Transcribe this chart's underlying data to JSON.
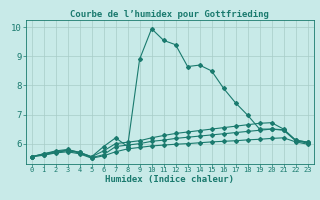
{
  "title": "Courbe de l’humidex pour Gottfrieding",
  "xlabel": "Humidex (Indice chaleur)",
  "bg_color": "#c8eae8",
  "line_color": "#1a7a6e",
  "grid_color": "#a8ccc8",
  "xlim": [
    -0.5,
    23.5
  ],
  "ylim": [
    5.3,
    10.25
  ],
  "xticks": [
    0,
    1,
    2,
    3,
    4,
    5,
    6,
    7,
    8,
    9,
    10,
    11,
    12,
    13,
    14,
    15,
    16,
    17,
    18,
    19,
    20,
    21,
    22,
    23
  ],
  "yticks": [
    6,
    7,
    8,
    9,
    10
  ],
  "line1_x": [
    0,
    1,
    2,
    3,
    4,
    5,
    6,
    7,
    8,
    9,
    10,
    11,
    12,
    13,
    14,
    15,
    16,
    17,
    18,
    19,
    20,
    21,
    22,
    23
  ],
  "line1_y": [
    5.55,
    5.65,
    5.75,
    5.8,
    5.7,
    5.55,
    5.9,
    6.2,
    5.9,
    8.9,
    9.95,
    9.55,
    9.4,
    8.65,
    8.7,
    8.5,
    7.9,
    7.4,
    6.98,
    6.5,
    6.5,
    6.48,
    6.12,
    6.05
  ],
  "line2_x": [
    0,
    1,
    2,
    3,
    4,
    5,
    6,
    7,
    8,
    9,
    10,
    11,
    12,
    13,
    14,
    15,
    16,
    17,
    18,
    19,
    20,
    21,
    22,
    23
  ],
  "line2_y": [
    5.55,
    5.65,
    5.72,
    5.78,
    5.7,
    5.55,
    5.75,
    6.0,
    6.05,
    6.1,
    6.2,
    6.28,
    6.35,
    6.4,
    6.45,
    6.5,
    6.55,
    6.6,
    6.65,
    6.7,
    6.72,
    6.5,
    6.12,
    6.05
  ],
  "line3_x": [
    0,
    1,
    2,
    3,
    4,
    5,
    6,
    7,
    8,
    9,
    10,
    11,
    12,
    13,
    14,
    15,
    16,
    17,
    18,
    19,
    20,
    21,
    22,
    23
  ],
  "line3_y": [
    5.55,
    5.62,
    5.7,
    5.76,
    5.68,
    5.52,
    5.62,
    5.9,
    5.95,
    6.0,
    6.08,
    6.12,
    6.18,
    6.22,
    6.26,
    6.3,
    6.34,
    6.38,
    6.42,
    6.46,
    6.5,
    6.46,
    6.1,
    6.02
  ],
  "line4_x": [
    0,
    1,
    2,
    3,
    4,
    5,
    6,
    7,
    8,
    9,
    10,
    11,
    12,
    13,
    14,
    15,
    16,
    17,
    18,
    19,
    20,
    21,
    22,
    23
  ],
  "line4_y": [
    5.55,
    5.6,
    5.68,
    5.72,
    5.65,
    5.5,
    5.58,
    5.72,
    5.82,
    5.87,
    5.92,
    5.95,
    5.98,
    6.0,
    6.03,
    6.06,
    6.08,
    6.1,
    6.13,
    6.15,
    6.18,
    6.2,
    6.06,
    5.98
  ]
}
